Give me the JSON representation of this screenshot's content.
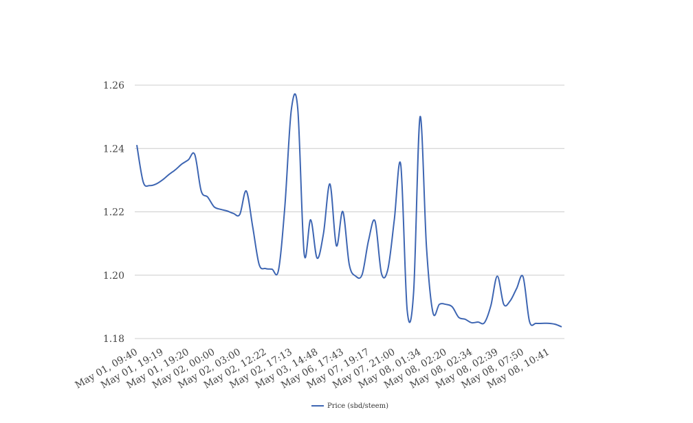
{
  "chart_data": {
    "type": "line",
    "categories": [
      "May 01, 09:40",
      null,
      null,
      null,
      "May 01, 19:19",
      null,
      null,
      null,
      "May 01, 19:20",
      null,
      null,
      null,
      "May 02, 00:00",
      null,
      null,
      null,
      "May 02, 03:00",
      null,
      null,
      null,
      "May 02, 12:22",
      null,
      null,
      null,
      "May 02, 17:13",
      null,
      null,
      null,
      "May 03, 14:48",
      null,
      null,
      null,
      "May 06, 17:43",
      null,
      null,
      null,
      "May 07, 19:17",
      null,
      null,
      null,
      "May 07, 21:00",
      null,
      null,
      null,
      "May 08, 01:34",
      null,
      null,
      null,
      "May 08, 02:20",
      null,
      null,
      null,
      "May 08, 02:34",
      null,
      null,
      null,
      "May 08, 02:39",
      null,
      null,
      null,
      "May 08, 07:50",
      null,
      null,
      null,
      "May 08, 10:41",
      null,
      null
    ],
    "series": [
      {
        "name": "Price (sbd/steem)",
        "color": "#3d65b2",
        "values": [
          1.2411,
          1.2294,
          1.2283,
          1.2288,
          1.2301,
          1.2318,
          1.2333,
          1.2351,
          1.2364,
          1.2381,
          1.2266,
          1.2247,
          1.2216,
          1.2208,
          1.2203,
          1.2195,
          1.2192,
          1.2266,
          1.2153,
          1.2034,
          1.2021,
          1.2019,
          1.2015,
          1.2218,
          1.2522,
          1.2526,
          1.2067,
          1.2175,
          1.2054,
          1.2132,
          1.2288,
          1.2093,
          1.2201,
          1.2034,
          1.1997,
          1.2002,
          1.211,
          1.2171,
          1.2006,
          1.2019,
          1.2175,
          1.2349,
          1.1889,
          1.1947,
          1.25,
          1.2088,
          1.1882,
          1.1908,
          1.1908,
          1.19,
          1.1867,
          1.1861,
          1.185,
          1.1852,
          1.185,
          1.1904,
          1.1997,
          1.1908,
          1.1919,
          1.1958,
          1.1995,
          1.1854,
          1.1848,
          1.1848,
          1.1848,
          1.1845,
          1.1837
        ]
      }
    ],
    "ylim": [
      1.18,
      1.26
    ],
    "yticks": [
      {
        "value": 1.18,
        "label": "1.18"
      },
      {
        "value": 1.2,
        "label": "1.20"
      },
      {
        "value": 1.22,
        "label": "1.22"
      },
      {
        "value": 1.24,
        "label": "1.24"
      },
      {
        "value": 1.26,
        "label": "1.26"
      }
    ],
    "grid": true,
    "legend": "bottom"
  }
}
